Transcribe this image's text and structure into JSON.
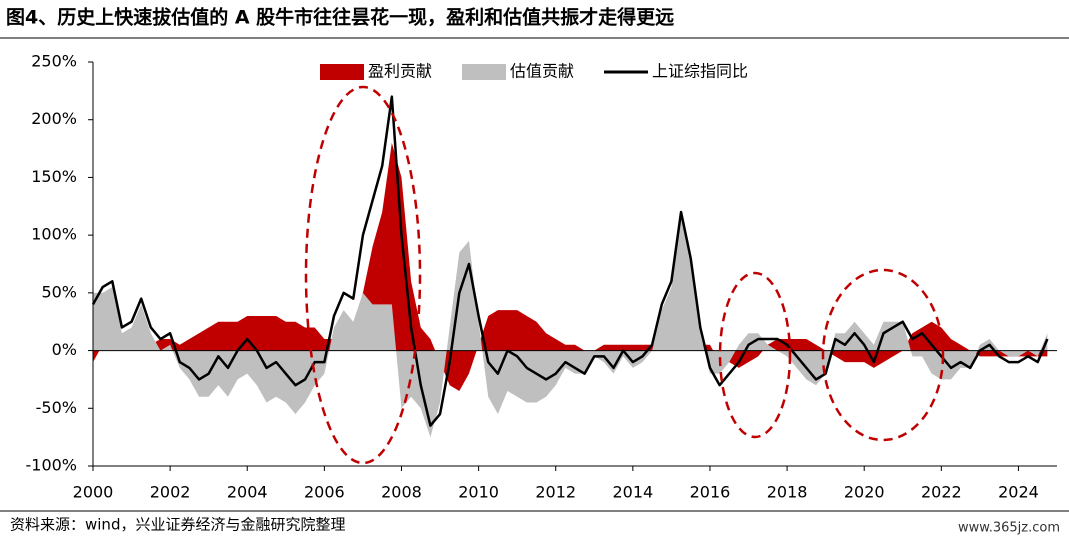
{
  "chart_data": {
    "type": "area",
    "title": "图4、历史上快速拔估值的 A 股牛市往往昙花一现，盈利和估值共振才走得更远",
    "source": "资料来源：wind，兴业证券经济与金融研究院整理",
    "watermark": "www.365jz.com",
    "x": [
      2000,
      2000.25,
      2000.5,
      2000.75,
      2001,
      2001.25,
      2001.5,
      2001.75,
      2002,
      2002.25,
      2002.5,
      2002.75,
      2003,
      2003.25,
      2003.5,
      2003.75,
      2004,
      2004.25,
      2004.5,
      2004.75,
      2005,
      2005.25,
      2005.5,
      2005.75,
      2006,
      2006.25,
      2006.5,
      2006.75,
      2007,
      2007.25,
      2007.5,
      2007.75,
      2008,
      2008.25,
      2008.5,
      2008.75,
      2009,
      2009.25,
      2009.5,
      2009.75,
      2010,
      2010.25,
      2010.5,
      2010.75,
      2011,
      2011.25,
      2011.5,
      2011.75,
      2012,
      2012.25,
      2012.5,
      2012.75,
      2013,
      2013.25,
      2013.5,
      2013.75,
      2014,
      2014.25,
      2014.5,
      2014.75,
      2015,
      2015.25,
      2015.5,
      2015.75,
      2016,
      2016.25,
      2016.5,
      2016.75,
      2017,
      2017.25,
      2017.5,
      2017.75,
      2018,
      2018.25,
      2018.5,
      2018.75,
      2019,
      2019.25,
      2019.5,
      2019.75,
      2020,
      2020.25,
      2020.5,
      2020.75,
      2021,
      2021.25,
      2021.5,
      2021.75,
      2022,
      2022.25,
      2022.5,
      2022.75,
      2023,
      2023.25,
      2023.5,
      2023.75,
      2024,
      2024.25,
      2024.5,
      2024.75
    ],
    "series": [
      {
        "name": "盈利贡献",
        "color": "#c00000",
        "values": [
          -10,
          5,
          5,
          5,
          5,
          5,
          5,
          10,
          10,
          5,
          10,
          15,
          20,
          25,
          25,
          25,
          30,
          30,
          30,
          30,
          25,
          25,
          20,
          20,
          10,
          10,
          15,
          20,
          50,
          90,
          120,
          180,
          150,
          60,
          20,
          10,
          -10,
          -30,
          -35,
          -20,
          5,
          30,
          35,
          35,
          35,
          30,
          25,
          15,
          10,
          5,
          5,
          0,
          0,
          5,
          5,
          5,
          5,
          5,
          5,
          5,
          5,
          5,
          5,
          5,
          5,
          -10,
          -10,
          -15,
          -10,
          -5,
          5,
          10,
          10,
          10,
          10,
          5,
          0,
          -5,
          -10,
          -10,
          -10,
          -15,
          -10,
          -5,
          0,
          15,
          20,
          25,
          20,
          10,
          5,
          0,
          -5,
          -5,
          -5,
          -5,
          -5,
          -5,
          -5,
          -5
        ]
      },
      {
        "name": "估值贡献",
        "color": "#bfbfbf",
        "values": [
          50,
          50,
          55,
          15,
          20,
          40,
          15,
          0,
          5,
          -15,
          -25,
          -40,
          -40,
          -30,
          -40,
          -25,
          -20,
          -30,
          -45,
          -40,
          -45,
          -55,
          -45,
          -30,
          -20,
          20,
          35,
          25,
          50,
          40,
          40,
          40,
          -50,
          -40,
          -50,
          -75,
          -45,
          20,
          85,
          95,
          25,
          -40,
          -55,
          -35,
          -40,
          -45,
          -45,
          -40,
          -30,
          -15,
          -20,
          -20,
          -5,
          -10,
          -20,
          -5,
          -15,
          -10,
          0,
          35,
          55,
          115,
          75,
          15,
          -20,
          -20,
          -10,
          5,
          15,
          15,
          5,
          0,
          -5,
          -15,
          -25,
          -30,
          -20,
          15,
          15,
          25,
          15,
          5,
          25,
          25,
          25,
          -5,
          -5,
          -20,
          -25,
          -25,
          -15,
          -15,
          5,
          10,
          0,
          -5,
          -5,
          0,
          -5,
          15
        ]
      },
      {
        "name": "上证综指同比",
        "type": "line",
        "color": "#000000",
        "values": [
          40,
          55,
          60,
          20,
          25,
          45,
          20,
          10,
          15,
          -10,
          -15,
          -25,
          -20,
          -5,
          -15,
          0,
          10,
          0,
          -15,
          -10,
          -20,
          -30,
          -25,
          -10,
          -10,
          30,
          50,
          45,
          100,
          130,
          160,
          220,
          100,
          20,
          -30,
          -65,
          -55,
          -10,
          50,
          75,
          30,
          -10,
          -20,
          0,
          -5,
          -15,
          -20,
          -25,
          -20,
          -10,
          -15,
          -20,
          -5,
          -5,
          -15,
          0,
          -10,
          -5,
          5,
          40,
          60,
          120,
          80,
          20,
          -15,
          -30,
          -20,
          -10,
          5,
          10,
          10,
          10,
          5,
          -5,
          -15,
          -25,
          -20,
          10,
          5,
          15,
          5,
          -10,
          15,
          20,
          25,
          10,
          15,
          5,
          -5,
          -15,
          -10,
          -15,
          0,
          5,
          -5,
          -10,
          -10,
          -5,
          -10,
          10
        ]
      }
    ],
    "xlim": [
      2000,
      2025
    ],
    "xticks": [
      2000,
      2002,
      2004,
      2006,
      2008,
      2010,
      2012,
      2014,
      2016,
      2018,
      2020,
      2022,
      2024
    ],
    "ylim": [
      -100,
      250
    ],
    "yticks": [
      {
        "value": -100,
        "label": "-100%"
      },
      {
        "value": -50,
        "label": "-50%"
      },
      {
        "value": 0,
        "label": "0%"
      },
      {
        "value": 50,
        "label": "50%"
      },
      {
        "value": 100,
        "label": "100%"
      },
      {
        "value": 150,
        "label": "150%"
      },
      {
        "value": 200,
        "label": "200%"
      },
      {
        "value": 250,
        "label": "250%"
      }
    ],
    "grid": false,
    "legend": "top"
  }
}
